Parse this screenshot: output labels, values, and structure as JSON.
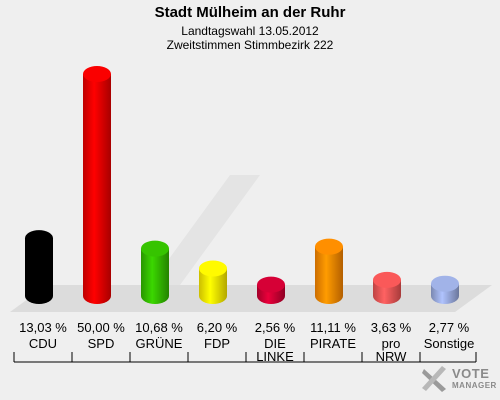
{
  "header": {
    "title": "Stadt Mülheim an der Ruhr",
    "subtitle1": "Landtagswahl 13.05.2012",
    "subtitle2": "Zweitstimmen Stimmbezirk 222"
  },
  "logo": {
    "line1": "VOTE",
    "line2": "MANAGER"
  },
  "chart_data": {
    "type": "bar",
    "title": "Stadt Mülheim an der Ruhr",
    "subtitle": "Landtagswahl 13.05.2012 — Zweitstimmen Stimmbezirk 222",
    "categories": [
      "CDU",
      "SPD",
      "GRÜNE",
      "FDP",
      "DIE LINKE",
      "PIRATE",
      "pro NRW",
      "Sonstige"
    ],
    "category_labels": [
      [
        "CDU"
      ],
      [
        "SPD"
      ],
      [
        "GRÜNE"
      ],
      [
        "FDP"
      ],
      [
        "DIE",
        "LINKE"
      ],
      [
        "PIRATE"
      ],
      [
        "pro",
        "NRW"
      ],
      [
        "Sonstige"
      ]
    ],
    "values": [
      13.03,
      50.0,
      10.68,
      6.2,
      2.56,
      11.11,
      3.63,
      2.77
    ],
    "value_labels": [
      "13,03 %",
      "50,00 %",
      "10,68 %",
      "6,20 %",
      "2,56 %",
      "11,11 %",
      "3,63 %",
      "2,77 %"
    ],
    "colors": [
      "#000000",
      "#ee0000",
      "#33bb00",
      "#ffee00",
      "#cc0033",
      "#ff8800",
      "#ee5555",
      "#99aadd"
    ],
    "ylim": [
      0,
      50
    ],
    "xlabel": "",
    "ylabel": "",
    "grid": false,
    "legend": "none"
  }
}
